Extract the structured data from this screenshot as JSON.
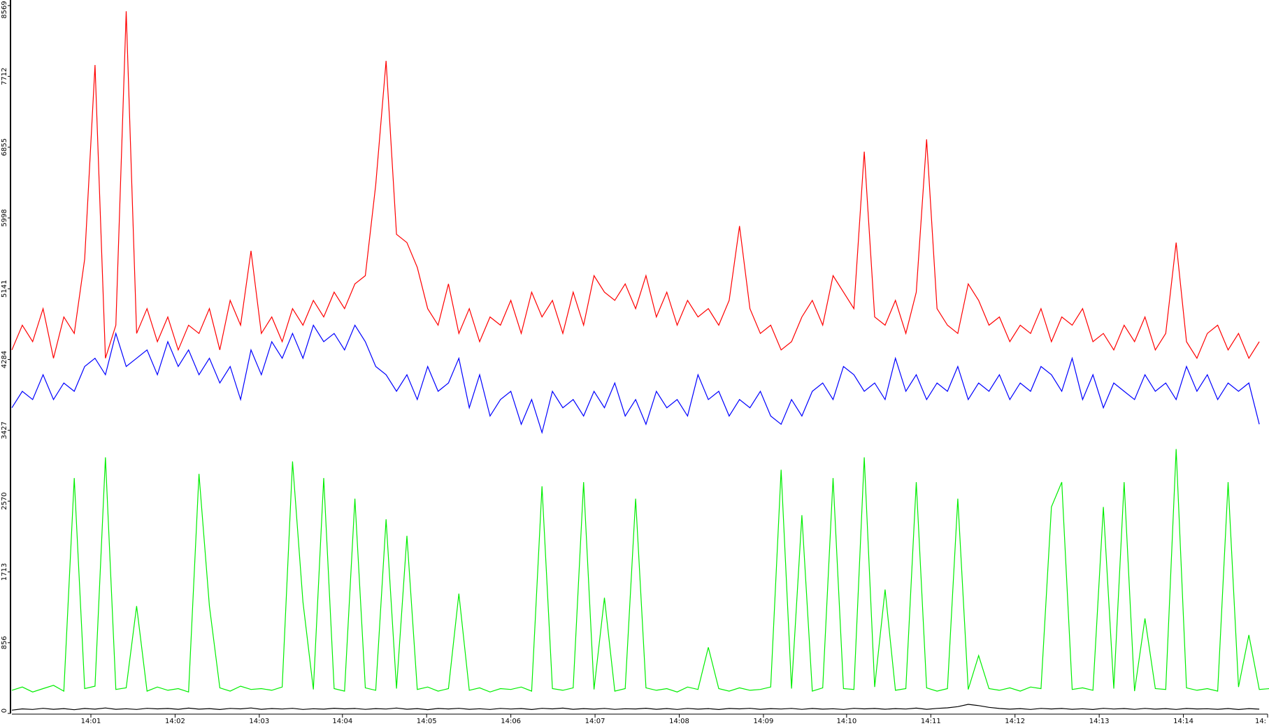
{
  "chart_data": {
    "type": "line",
    "ylim": [
      0,
      8569
    ],
    "yticks": [
      0,
      856,
      1713,
      2570,
      3427,
      4284,
      5141,
      5998,
      6855,
      7712,
      8569
    ],
    "xlim": [
      0,
      120.8
    ],
    "xticks": [
      {
        "value": 7.6,
        "label": "14:01"
      },
      {
        "value": 15.7,
        "label": "14:02"
      },
      {
        "value": 23.8,
        "label": "14:03"
      },
      {
        "value": 31.8,
        "label": "14:04"
      },
      {
        "value": 39.9,
        "label": "14:05"
      },
      {
        "value": 48.0,
        "label": "14:06"
      },
      {
        "value": 56.1,
        "label": "14:07"
      },
      {
        "value": 64.2,
        "label": "14:08"
      },
      {
        "value": 72.3,
        "label": "14:09"
      },
      {
        "value": 80.3,
        "label": "14:10"
      },
      {
        "value": 88.4,
        "label": "14:11"
      },
      {
        "value": 96.5,
        "label": "14:12"
      },
      {
        "value": 104.6,
        "label": "14:13"
      },
      {
        "value": 112.7,
        "label": "14:14"
      },
      {
        "value": 120.8,
        "label": "14:"
      }
    ],
    "series": [
      {
        "color": "#ff0000",
        "values": [
          4400,
          4700,
          4500,
          4900,
          4300,
          4800,
          4600,
          5500,
          7850,
          4300,
          4700,
          8500,
          4600,
          4900,
          4500,
          4800,
          4400,
          4700,
          4600,
          4900,
          4400,
          5000,
          4700,
          5600,
          4600,
          4800,
          4500,
          4900,
          4700,
          5000,
          4800,
          5100,
          4900,
          5200,
          5300,
          6400,
          7900,
          5800,
          5700,
          5400,
          4900,
          4700,
          5200,
          4600,
          4900,
          4500,
          4800,
          4700,
          5000,
          4600,
          5100,
          4800,
          5000,
          4600,
          5100,
          4700,
          5300,
          5100,
          5000,
          5200,
          4900,
          5300,
          4800,
          5100,
          4700,
          5000,
          4800,
          4900,
          4700,
          5000,
          5900,
          4900,
          4600,
          4700,
          4400,
          4500,
          4800,
          5000,
          4700,
          5300,
          5100,
          4900,
          6800,
          4800,
          4700,
          5000,
          4600,
          5100,
          6950,
          4900,
          4700,
          4600,
          5200,
          5000,
          4700,
          4800,
          4500,
          4700,
          4600,
          4900,
          4500,
          4800,
          4700,
          4900,
          4500,
          4600,
          4400,
          4700,
          4500,
          4800,
          4400,
          4600,
          5700,
          4500,
          4300,
          4600,
          4700,
          4400,
          4600,
          4300,
          4500
        ]
      },
      {
        "color": "#0000ff",
        "values": [
          3700,
          3900,
          3800,
          4100,
          3800,
          4000,
          3900,
          4200,
          4300,
          4100,
          4600,
          4200,
          4300,
          4400,
          4100,
          4500,
          4200,
          4400,
          4100,
          4300,
          4000,
          4200,
          3800,
          4400,
          4100,
          4500,
          4300,
          4600,
          4300,
          4700,
          4500,
          4600,
          4400,
          4700,
          4500,
          4200,
          4100,
          3900,
          4100,
          3800,
          4200,
          3900,
          4000,
          4300,
          3700,
          4100,
          3600,
          3800,
          3900,
          3500,
          3800,
          3400,
          3900,
          3700,
          3800,
          3600,
          3900,
          3700,
          4000,
          3600,
          3800,
          3500,
          3900,
          3700,
          3800,
          3600,
          4100,
          3800,
          3900,
          3600,
          3800,
          3700,
          3900,
          3600,
          3500,
          3800,
          3600,
          3900,
          4000,
          3800,
          4200,
          4100,
          3900,
          4000,
          3800,
          4300,
          3900,
          4100,
          3800,
          4000,
          3900,
          4200,
          3800,
          4000,
          3900,
          4100,
          3800,
          4000,
          3900,
          4200,
          4100,
          3900,
          4300,
          3800,
          4100,
          3700,
          4000,
          3900,
          3800,
          4100,
          3900,
          4000,
          3800,
          4200,
          3900,
          4100,
          3800,
          4000,
          3900,
          4000,
          3500
        ]
      },
      {
        "color": "#00ee00",
        "values": [
          280,
          320,
          260,
          300,
          340,
          270,
          2850,
          300,
          330,
          3100,
          290,
          310,
          1300,
          270,
          320,
          280,
          300,
          260,
          2900,
          1300,
          310,
          270,
          330,
          290,
          300,
          280,
          320,
          3050,
          1350,
          290,
          2850,
          300,
          270,
          2600,
          310,
          280,
          2350,
          300,
          2150,
          290,
          320,
          270,
          300,
          1450,
          280,
          310,
          260,
          300,
          290,
          320,
          270,
          2750,
          300,
          280,
          310,
          2800,
          290,
          1400,
          270,
          300,
          2600,
          310,
          280,
          300,
          260,
          320,
          290,
          800,
          300,
          270,
          310,
          280,
          290,
          320,
          2950,
          300,
          2400,
          270,
          310,
          2850,
          300,
          290,
          3100,
          320,
          1500,
          280,
          300,
          2800,
          310,
          270,
          300,
          2600,
          290,
          700,
          300,
          280,
          310,
          270,
          320,
          300,
          2500,
          2800,
          290,
          310,
          280,
          2500,
          300,
          2800,
          270,
          1150,
          300,
          290,
          3200,
          310,
          280,
          300,
          270,
          2800,
          320,
          950,
          290,
          300
        ]
      },
      {
        "color": "#000000",
        "values": [
          40,
          55,
          48,
          62,
          50,
          58,
          45,
          60,
          52,
          66,
          50,
          57,
          48,
          62,
          55,
          60,
          50,
          64,
          52,
          58,
          47,
          61,
          55,
          66,
          50,
          59,
          53,
          62,
          48,
          57,
          52,
          63,
          55,
          60,
          49,
          58,
          53,
          65,
          51,
          58,
          46,
          60,
          54,
          62,
          50,
          57,
          48,
          61,
          53,
          59,
          47,
          62,
          55,
          64,
          50,
          58,
          52,
          61,
          49,
          57,
          54,
          63,
          50,
          59,
          48,
          61,
          52,
          58,
          47,
          60,
          55,
          62,
          50,
          58,
          53,
          61,
          49,
          60,
          52,
          57,
          48,
          62,
          55,
          60,
          51,
          58,
          53,
          64,
          50,
          61,
          68,
          82,
          110,
          95,
          74,
          60,
          52,
          58,
          48,
          61,
          54,
          60,
          50,
          57,
          47,
          62,
          53,
          59,
          49,
          61,
          52,
          58,
          48,
          60,
          54,
          57,
          50,
          59,
          47,
          58,
          52
        ]
      }
    ]
  }
}
